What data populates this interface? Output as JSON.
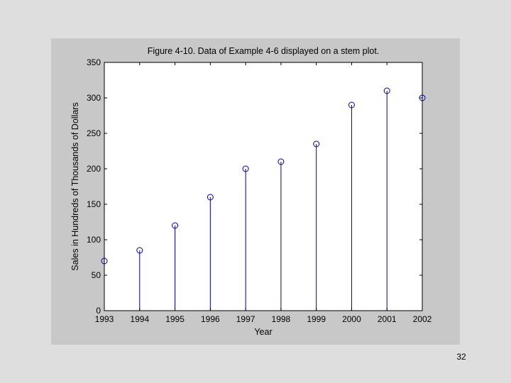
{
  "page": {
    "number": "32"
  },
  "chart_data": {
    "type": "stem",
    "title": "Figure 4-10. Data of Example 4-6 displayed on a stem plot.",
    "xlabel": "Year",
    "ylabel": "Sales in Hundreds of Thousands of Dollars",
    "x": [
      1993,
      1994,
      1995,
      1996,
      1997,
      1998,
      1999,
      2000,
      2001,
      2002
    ],
    "values": [
      70,
      85,
      120,
      160,
      200,
      210,
      235,
      290,
      310,
      300
    ],
    "xlim": [
      1993,
      2002
    ],
    "ylim": [
      0,
      350
    ],
    "xticks": [
      "1993",
      "1994",
      "1995",
      "1996",
      "1997",
      "1998",
      "1999",
      "2000",
      "2001",
      "2002"
    ],
    "yticks": [
      "0",
      "50",
      "100",
      "150",
      "200",
      "250",
      "300",
      "350"
    ],
    "grid": false,
    "colors": {
      "stem": "#0000aa",
      "marker": "#0000aa",
      "axes_bg": "#ffffff",
      "figure_bg": "#c8c8c8"
    }
  }
}
